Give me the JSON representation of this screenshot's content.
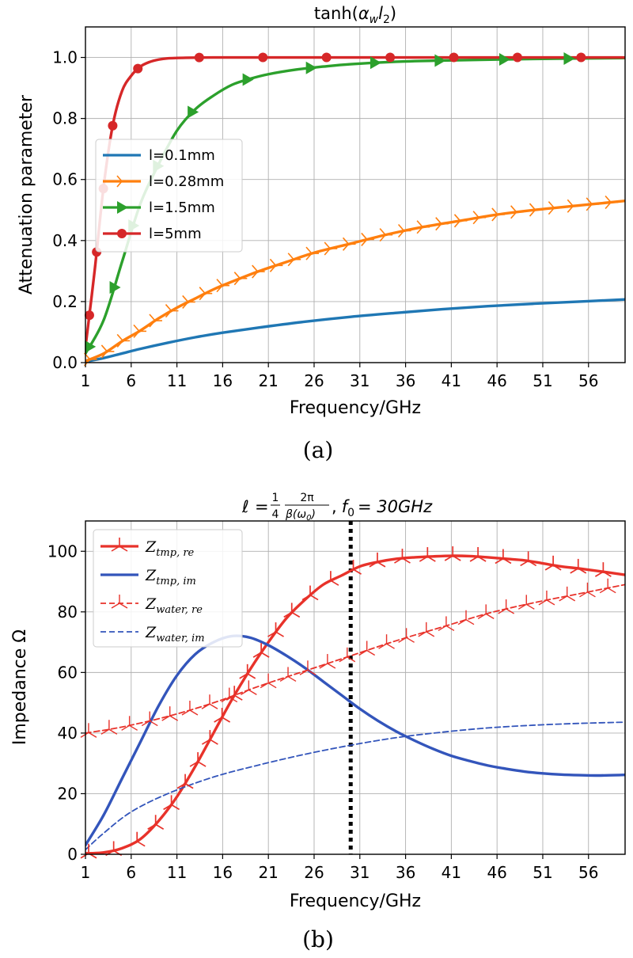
{
  "chart_data": [
    {
      "type": "line",
      "panel_caption": "(a)",
      "title": "tanh(α_w l_2)",
      "title_parts": {
        "pre": "tanh(",
        "a": "α",
        "a_sub": "w",
        "l": "l",
        "l_sub": "2",
        "post": ")"
      },
      "xlabel": "Frequency/GHz",
      "ylabel": "Attenuation parameter",
      "xlim": [
        1,
        60
      ],
      "ylim": [
        0,
        1.1
      ],
      "xticks": [
        1,
        6,
        11,
        16,
        21,
        26,
        31,
        36,
        41,
        46,
        51,
        56
      ],
      "yticks": [
        0.0,
        0.2,
        0.4,
        0.6,
        0.8,
        1.0
      ],
      "ytick_labels": [
        "0.0",
        "0.2",
        "0.4",
        "0.6",
        "0.8",
        "1.0"
      ],
      "grid": true,
      "legend_position": "center-left",
      "series": [
        {
          "name": "l=0.1mm",
          "color": "#1f77b4",
          "marker": "none",
          "x": [
            1,
            3,
            5,
            7,
            10,
            13,
            16,
            20,
            25,
            30,
            35,
            40,
            45,
            50,
            55,
            60
          ],
          "y": [
            0.003,
            0.015,
            0.03,
            0.045,
            0.065,
            0.083,
            0.098,
            0.115,
            0.134,
            0.15,
            0.163,
            0.175,
            0.185,
            0.193,
            0.2,
            0.207
          ]
        },
        {
          "name": "l=0.28mm",
          "color": "#ff7f0e",
          "marker": "tri_right",
          "x": [
            1,
            3,
            5,
            7,
            9,
            11,
            13,
            15,
            17,
            20,
            23,
            26,
            30,
            34,
            38,
            42,
            46,
            50,
            55,
            60
          ],
          "y": [
            0.005,
            0.03,
            0.07,
            0.105,
            0.145,
            0.18,
            0.21,
            0.24,
            0.265,
            0.3,
            0.33,
            0.36,
            0.39,
            0.42,
            0.445,
            0.465,
            0.485,
            0.5,
            0.515,
            0.53
          ]
        },
        {
          "name": "l=1.5mm",
          "color": "#2ca02c",
          "marker": "triangle_right",
          "x": [
            1,
            3,
            5,
            7,
            9,
            11,
            13,
            15,
            17,
            19,
            21,
            24,
            27,
            30,
            35,
            40,
            50,
            60
          ],
          "y": [
            0.03,
            0.14,
            0.33,
            0.52,
            0.65,
            0.76,
            0.83,
            0.875,
            0.91,
            0.93,
            0.945,
            0.96,
            0.97,
            0.978,
            0.986,
            0.99,
            0.995,
            0.998
          ]
        },
        {
          "name": "l=5mm",
          "color": "#d62728",
          "marker": "circle",
          "x": [
            1,
            2,
            3,
            4,
            5,
            6,
            7,
            8,
            9,
            10,
            12,
            15,
            20,
            30,
            40,
            50,
            60
          ],
          "y": [
            0.05,
            0.3,
            0.58,
            0.78,
            0.89,
            0.94,
            0.97,
            0.985,
            0.993,
            0.997,
            0.999,
            1.0,
            1.0,
            1.0,
            1.0,
            1.0,
            1.0
          ]
        }
      ]
    },
    {
      "type": "line",
      "panel_caption": "(b)",
      "title": "ℓ = (1/4)(2π/β(ω0)), f0 = 30GHz",
      "title_parts": {
        "ell": "ℓ",
        "eq": "=",
        "num1": "1",
        "den1": "4",
        "num2": "2π",
        "den2": "β(ω",
        "den2_sub": "0",
        "den2_end": ")",
        "comma": ",",
        "f": "f",
        "f_sub": "0",
        "rest": "= 30GHz"
      },
      "xlabel": "Frequency/GHz",
      "ylabel": "Impedance Ω",
      "xlim": [
        1,
        60
      ],
      "ylim": [
        0,
        110
      ],
      "xticks": [
        1,
        6,
        11,
        16,
        21,
        26,
        31,
        36,
        41,
        46,
        51,
        56
      ],
      "yticks": [
        0,
        20,
        40,
        60,
        80,
        100
      ],
      "ytick_labels": [
        "0",
        "20",
        "40",
        "60",
        "80",
        "100"
      ],
      "grid": true,
      "legend_position": "top-left",
      "vline": {
        "x": 30,
        "style": "dotted",
        "color": "#000000"
      },
      "series": [
        {
          "name": "Z_tmp,re",
          "name_main": "Z",
          "name_sub": "tmp, re",
          "color": "#e8322a",
          "linestyle": "solid",
          "marker": "tri",
          "x": [
            1,
            3,
            5,
            7,
            9,
            11,
            13,
            15,
            17,
            19,
            21,
            23,
            25,
            27,
            29,
            31,
            33,
            35,
            37,
            39,
            41,
            43,
            45,
            47,
            49,
            51,
            53,
            55,
            57,
            60
          ],
          "y": [
            0.3,
            0.6,
            2,
            5,
            11,
            19,
            29,
            40,
            51,
            61,
            70,
            78,
            84,
            89,
            92,
            95,
            96.5,
            97.5,
            98,
            98.3,
            98.5,
            98.4,
            98,
            97.5,
            97,
            96,
            95,
            94.3,
            93.5,
            92.2
          ]
        },
        {
          "name": "Z_tmp,im",
          "name_main": "Z",
          "name_sub": "tmp, im",
          "color": "#3355bb",
          "linestyle": "solid",
          "marker": "none",
          "x": [
            1,
            3,
            5,
            7,
            9,
            11,
            13,
            15,
            17,
            19,
            21,
            23,
            25,
            27,
            29,
            31,
            33,
            35,
            37,
            39,
            41,
            43,
            45,
            47,
            49,
            51,
            53,
            55,
            57,
            60
          ],
          "y": [
            3,
            13,
            25,
            37,
            49,
            59,
            66,
            70,
            72,
            71.5,
            69,
            65.5,
            61.5,
            57,
            52.5,
            48,
            44,
            40.5,
            37.5,
            34.8,
            32.5,
            30.8,
            29.3,
            28.2,
            27.3,
            26.7,
            26.3,
            26.1,
            26,
            26.2
          ]
        },
        {
          "name": "Z_water,re",
          "name_main": "Z",
          "name_sub": "water, re",
          "color": "#e8322a",
          "linestyle": "dashed",
          "marker": "tri",
          "x": [
            1,
            5,
            10,
            15,
            20,
            25,
            30,
            35,
            40,
            45,
            50,
            55,
            60
          ],
          "y": [
            40,
            42,
            45.5,
            50,
            55.5,
            60.5,
            65.5,
            70.5,
            75,
            79.5,
            83,
            86,
            89
          ]
        },
        {
          "name": "Z_water,im",
          "name_main": "Z",
          "name_sub": "water, im",
          "color": "#3355bb",
          "linestyle": "dashed",
          "marker": "none",
          "x": [
            1,
            3,
            6,
            10,
            15,
            20,
            25,
            30,
            35,
            40,
            45,
            50,
            55,
            60
          ],
          "y": [
            1.5,
            7,
            14,
            20,
            25.5,
            29.5,
            33,
            36,
            38.5,
            40.3,
            41.7,
            42.6,
            43.2,
            43.6
          ]
        }
      ]
    }
  ]
}
